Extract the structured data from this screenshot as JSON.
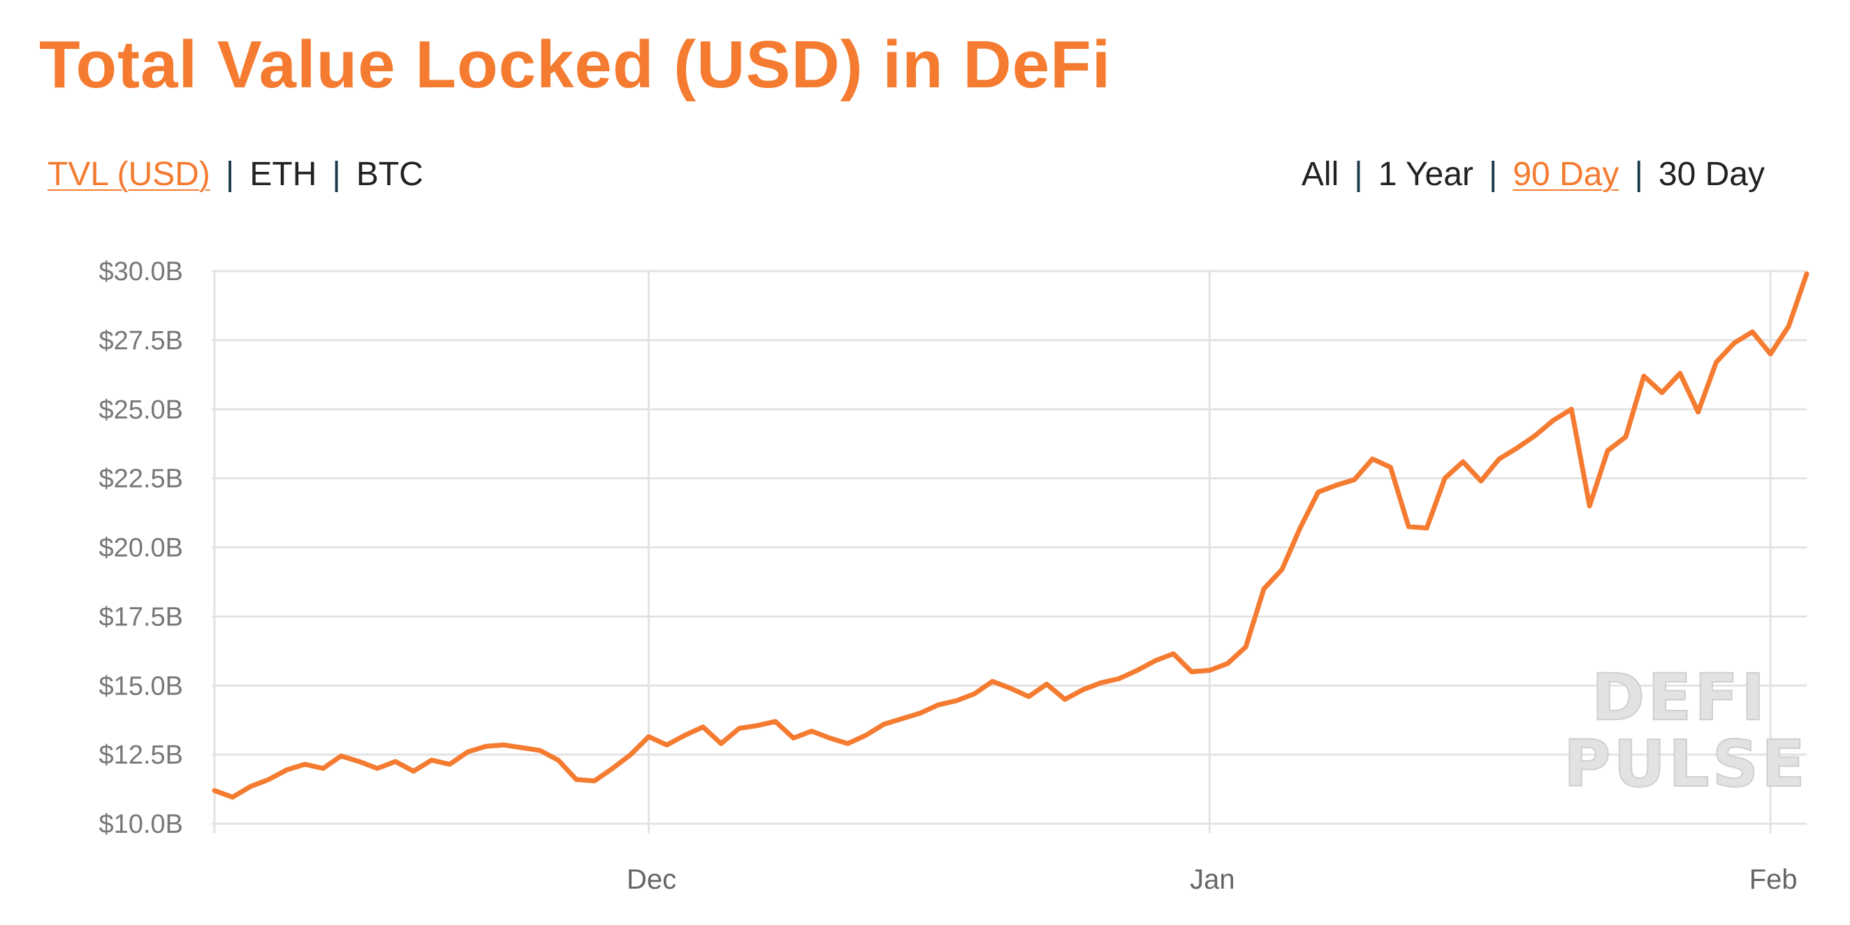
{
  "title": "Total Value Locked (USD) in DeFi",
  "metric_tabs": [
    {
      "label": "TVL (USD)",
      "active": true
    },
    {
      "label": "ETH",
      "active": false
    },
    {
      "label": "BTC",
      "active": false
    }
  ],
  "range_tabs": [
    {
      "label": "All",
      "active": false
    },
    {
      "label": "1 Year",
      "active": false
    },
    {
      "label": "90 Day",
      "active": true
    },
    {
      "label": "30 Day",
      "active": false
    }
  ],
  "separator": "|",
  "watermark": [
    "DEFI",
    "PULSE"
  ],
  "colors": {
    "accent": "#f47b30",
    "line": "#f47b30",
    "grid": "#e3e3e3",
    "tick": "#777777"
  },
  "chart_data": {
    "type": "line",
    "title": "Total Value Locked (USD) in DeFi",
    "xlabel": "",
    "ylabel": "",
    "ylim": [
      10.0,
      30.0
    ],
    "y_unit": "USD billions",
    "y_ticks": [
      "$10.0B",
      "$12.5B",
      "$15.0B",
      "$17.5B",
      "$20.0B",
      "$22.5B",
      "$25.0B",
      "$27.5B",
      "$30.0B"
    ],
    "y_tick_values": [
      10.0,
      12.5,
      15.0,
      17.5,
      20.0,
      22.5,
      25.0,
      27.5,
      30.0
    ],
    "x_ticks": [
      {
        "label": "Dec",
        "date": "2020-12-01"
      },
      {
        "label": "Jan",
        "date": "2021-01-01"
      },
      {
        "label": "Feb",
        "date": "2021-02-01"
      }
    ],
    "xlim": [
      "2020-11-07",
      "2021-02-03"
    ],
    "grid": true,
    "legend": "none",
    "start_date": "2020-11-07",
    "series": [
      {
        "values": [
          11.2,
          10.96,
          11.35,
          11.6,
          11.95,
          12.15,
          12.0,
          12.45,
          12.25,
          12.0,
          12.25,
          11.9,
          12.3,
          12.15,
          12.6,
          12.8,
          12.85,
          12.75,
          12.65,
          12.3,
          11.6,
          11.55,
          12.0,
          12.5,
          13.15,
          12.85,
          13.2,
          13.5,
          12.9,
          13.45,
          13.55,
          13.7,
          13.1,
          13.35,
          13.1,
          12.9,
          13.2,
          13.6,
          13.8,
          14.0,
          14.3,
          14.45,
          14.7,
          15.15,
          14.9,
          14.6,
          15.05,
          14.5,
          14.85,
          15.1,
          15.25,
          15.55,
          15.9,
          16.15,
          15.5,
          15.55,
          15.8,
          16.4,
          18.5,
          19.2,
          20.7,
          22.0,
          22.25,
          22.45,
          23.2,
          22.9,
          20.75,
          20.7,
          22.5,
          23.1,
          22.4,
          23.2,
          23.6,
          24.05,
          24.6,
          25.0,
          21.5,
          23.5,
          24.0,
          26.2,
          25.6,
          26.3,
          24.9,
          26.7,
          27.4,
          27.8,
          27.0,
          28.0,
          29.9
        ]
      }
    ]
  }
}
